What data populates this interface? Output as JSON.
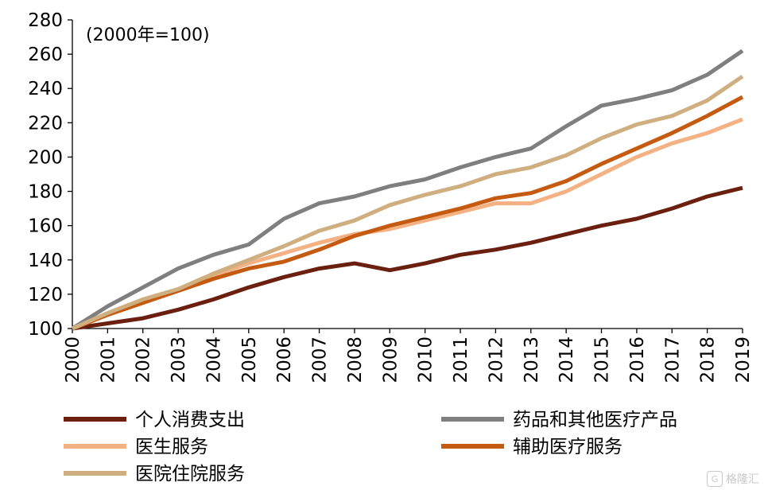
{
  "chart_data": {
    "type": "line",
    "note": "(2000年=100)",
    "x": [
      "2000",
      "2001",
      "2002",
      "2003",
      "2004",
      "2005",
      "2006",
      "2007",
      "2008",
      "2009",
      "2010",
      "2011",
      "2012",
      "2013",
      "2014",
      "2015",
      "2016",
      "2017",
      "2018",
      "2019"
    ],
    "ylim": [
      100,
      280
    ],
    "yticks": [
      100,
      120,
      140,
      160,
      180,
      200,
      220,
      240,
      260,
      280
    ],
    "grid": false,
    "legend_position": "bottom",
    "series": [
      {
        "name": "个人消费支出",
        "color": "#6b1f0e",
        "values": [
          100,
          103,
          106,
          111,
          117,
          124,
          130,
          135,
          138,
          134,
          138,
          143,
          146,
          150,
          155,
          160,
          164,
          170,
          177,
          182
        ]
      },
      {
        "name": "药品和其他医疗产品",
        "color": "#7f7f7f",
        "values": [
          100,
          113,
          124,
          135,
          143,
          149,
          164,
          173,
          177,
          183,
          187,
          194,
          200,
          205,
          218,
          230,
          234,
          239,
          248,
          262
        ]
      },
      {
        "name": "医生服务",
        "color": "#f4b183",
        "values": [
          100,
          108,
          116,
          122,
          131,
          138,
          144,
          150,
          155,
          158,
          163,
          168,
          173,
          173,
          180,
          190,
          200,
          208,
          214,
          222
        ]
      },
      {
        "name": "辅助医疗服务",
        "color": "#c55a11",
        "values": [
          100,
          108,
          115,
          122,
          129,
          135,
          139,
          146,
          154,
          160,
          165,
          170,
          176,
          179,
          186,
          196,
          205,
          214,
          224,
          235
        ]
      },
      {
        "name": "医院住院服务",
        "color": "#cfae80",
        "values": [
          100,
          109,
          117,
          123,
          132,
          140,
          148,
          157,
          163,
          172,
          178,
          183,
          190,
          194,
          201,
          211,
          219,
          224,
          233,
          247
        ]
      }
    ]
  },
  "watermark": {
    "icon": "G",
    "text": "格隆汇"
  }
}
